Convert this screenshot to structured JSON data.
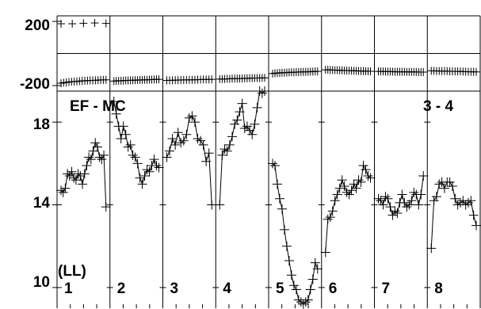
{
  "chart_data": {
    "type": "line",
    "panel_count": 8,
    "top_panel": {
      "y_tick_labels": [
        "200",
        "-200"
      ],
      "ylim": [
        -200,
        200
      ],
      "reference_line": 0,
      "series": [
        {
          "panel": 1,
          "values": [
            185,
            185,
            188,
            190,
            187
          ]
        },
        {
          "panel": 1,
          "values": [
            -185,
            -182,
            -180,
            -178,
            -176,
            -175,
            -174,
            -172,
            -171,
            -170,
            -169,
            -168,
            -168,
            -167,
            -166,
            -165,
            -165,
            -164
          ]
        },
        {
          "panel": 2,
          "values": [
            -172,
            -171,
            -170,
            -170,
            -169,
            -168,
            -168,
            -167,
            -167,
            -166,
            -166,
            -165,
            -165,
            -164,
            -164,
            -163,
            -163,
            -162,
            -162,
            -161
          ]
        },
        {
          "panel": 3,
          "values": [
            -168,
            -167,
            -167,
            -166,
            -166,
            -165,
            -165,
            -165,
            -164,
            -164,
            -164,
            -163,
            -163,
            -162,
            -162,
            -162,
            -161
          ]
        },
        {
          "panel": 4,
          "values": [
            -160,
            -159,
            -159,
            -158,
            -158,
            -157,
            -157,
            -156,
            -156,
            -156,
            -155,
            -155,
            -154,
            -154,
            -153,
            -153,
            -153,
            -152,
            -152
          ]
        },
        {
          "panel": 5,
          "values": [
            -125,
            -123,
            -122,
            -121,
            -120,
            -120,
            -119,
            -118,
            -117,
            -117,
            -116,
            -116,
            -115,
            -115,
            -114,
            -114,
            -113,
            -113,
            -112,
            -112
          ]
        },
        {
          "panel": 6,
          "values": [
            -102,
            -102,
            -103,
            -103,
            -104,
            -104,
            -105,
            -105,
            -106,
            -106,
            -107,
            -107,
            -108,
            -108,
            -109,
            -109,
            -110,
            -110,
            -111,
            -111
          ]
        },
        {
          "panel": 7,
          "values": [
            -112,
            -112,
            -112,
            -113,
            -113,
            -113,
            -113,
            -114,
            -114,
            -114,
            -114,
            -114,
            -115,
            -115,
            -115,
            -115,
            -115,
            -116,
            -116,
            -116
          ]
        },
        {
          "panel": 8,
          "values": [
            -108,
            -108,
            -109,
            -109,
            -110,
            -110,
            -110,
            -111,
            -111,
            -112,
            -112,
            -112,
            -113,
            -113,
            -114,
            -114,
            -114,
            -115
          ]
        }
      ]
    },
    "main_panel": {
      "y_tick_labels": [
        "18",
        "14",
        "10"
      ],
      "ylim": [
        9,
        19.5
      ],
      "series": [
        {
          "panel": 1,
          "values": [
            14.7,
            14.6,
            14.8,
            15.5,
            15.4,
            15.6,
            15.3,
            15.2,
            15.5,
            15.4,
            15.0,
            15.5,
            15.9,
            16.3,
            16.2,
            16.6,
            17.0,
            16.8,
            16.3,
            16.2,
            16.4,
            13.9
          ]
        },
        {
          "panel": 2,
          "values": [
            19.0,
            18.4,
            17.8,
            17.2,
            17.8,
            17.4,
            16.8,
            16.9,
            16.4,
            16.3,
            16.0,
            15.3,
            15.0,
            15.4,
            15.7,
            15.6,
            15.9,
            16.2,
            15.9,
            15.8
          ]
        },
        {
          "panel": 3,
          "values": [
            16.3,
            16.6,
            17.2,
            16.9,
            17.5,
            17.0,
            17.1,
            17.4,
            18.2,
            18.3,
            18.0,
            17.2,
            17.1,
            16.9,
            16.1,
            16.5,
            14.0
          ]
        },
        {
          "panel": 4,
          "values": [
            14.0,
            16.4,
            16.7,
            16.6,
            16.9,
            17.3,
            17.9,
            18.1,
            18.5,
            18.9,
            17.7,
            17.8,
            17.6,
            17.4,
            17.9,
            18.7,
            19.5,
            19.4,
            19.5
          ]
        },
        {
          "panel": 5,
          "values": [
            16.0,
            15.9,
            15.0,
            14.3,
            13.8,
            12.8,
            12.0,
            11.3,
            10.6,
            10.1,
            9.9,
            9.4,
            9.3,
            9.2,
            9.3,
            9.4,
            9.9,
            10.4,
            11.2,
            10.9
          ]
        },
        {
          "panel": 6,
          "values": [
            11.7,
            13.3,
            13.4,
            13.7,
            14.2,
            14.5,
            14.8,
            15.2,
            14.9,
            14.6,
            14.5,
            14.7,
            15.0,
            14.8,
            15.2,
            15.1,
            15.9,
            15.7,
            15.4,
            15.3
          ]
        },
        {
          "panel": 7,
          "values": [
            14.3,
            14.2,
            14.0,
            14.4,
            14.3,
            13.9,
            13.5,
            13.7,
            13.6,
            14.1,
            14.5,
            14.1,
            13.9,
            14.0,
            14.2,
            14.6,
            14.5,
            14.0,
            14.5,
            15.4
          ]
        },
        {
          "panel": 8,
          "values": [
            11.9,
            14.2,
            14.4,
            15.0,
            15.1,
            14.8,
            15.1,
            15.1,
            14.9,
            14.3,
            14.0,
            14.1,
            14.2,
            14.0,
            14.1,
            14.2,
            13.5,
            13.0
          ]
        }
      ]
    },
    "annotations": [
      "EF - MC",
      "3 - 4",
      "(LL)"
    ],
    "panel_labels": [
      "1",
      "2",
      "3",
      "4",
      "5",
      "6",
      "7",
      "8"
    ]
  }
}
